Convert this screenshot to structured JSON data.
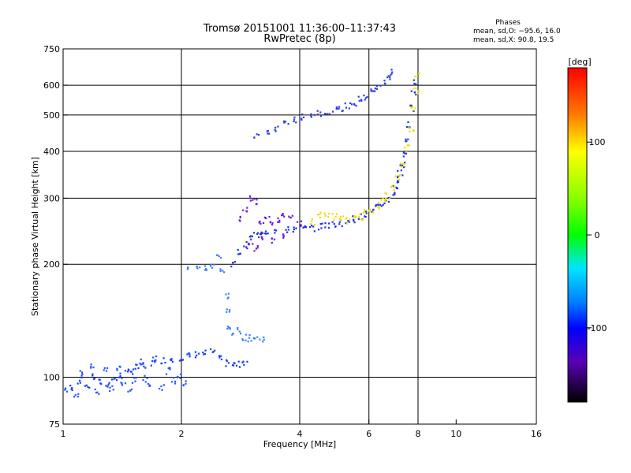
{
  "header": {
    "title": "Tromsø 20151001 11:36:00–11:37:43",
    "subtitle": "RwPretec (8p)"
  },
  "phases_box": {
    "title": "Phases",
    "line1": "mean, sd,O: −95.6, 16.0",
    "line2": "mean, sd,X:  90.8, 19.5"
  },
  "chart_data": {
    "type": "scatter",
    "xlabel": "Frequency [MHz]",
    "ylabel": "Stationary phase Virtual Height [km]",
    "xscale": "log",
    "yscale": "log",
    "xlim": [
      1,
      16
    ],
    "ylim": [
      75,
      750
    ],
    "x_ticks": [
      1,
      2,
      4,
      6,
      8,
      10,
      16
    ],
    "y_ticks": [
      75,
      100,
      200,
      300,
      400,
      500,
      600,
      750
    ],
    "x_gridlines": [
      2,
      4,
      6,
      8
    ],
    "y_gridlines": [
      100,
      200,
      300,
      400,
      500,
      600
    ],
    "grid": true,
    "colorbar": {
      "label": "[deg]",
      "range": [
        -180,
        180
      ],
      "ticks": [
        100,
        0,
        -100
      ]
    },
    "traces": [
      {
        "name_hint": "low-E",
        "color": "#1a3cff",
        "points": [
          [
            1.0,
            96
          ],
          [
            1.05,
            94
          ],
          [
            1.1,
            98
          ],
          [
            1.15,
            95
          ],
          [
            1.2,
            100
          ],
          [
            1.25,
            97
          ],
          [
            1.3,
            96
          ],
          [
            1.35,
            99
          ],
          [
            1.4,
            101
          ],
          [
            1.45,
            103
          ],
          [
            1.5,
            104
          ],
          [
            1.55,
            106
          ],
          [
            1.6,
            107
          ],
          [
            1.7,
            109
          ],
          [
            1.8,
            111
          ],
          [
            1.9,
            112
          ],
          [
            2.0,
            113
          ],
          [
            2.1,
            114
          ],
          [
            2.2,
            115
          ],
          [
            2.3,
            116
          ],
          [
            2.4,
            117
          ],
          [
            2.5,
            112
          ],
          [
            2.6,
            109
          ],
          [
            2.7,
            108
          ],
          [
            2.8,
            108
          ],
          [
            2.9,
            110
          ]
        ]
      },
      {
        "name_hint": "spread-low",
        "color": "#2a55ff",
        "points": [
          [
            1.02,
            92
          ],
          [
            1.08,
            90
          ],
          [
            1.12,
            103
          ],
          [
            1.18,
            108
          ],
          [
            1.22,
            92
          ],
          [
            1.28,
            104
          ],
          [
            1.33,
            93
          ],
          [
            1.38,
            106
          ],
          [
            1.42,
            96
          ],
          [
            1.48,
            92
          ],
          [
            1.52,
            98
          ],
          [
            1.58,
            110
          ],
          [
            1.62,
            99
          ],
          [
            1.66,
            96
          ],
          [
            1.72,
            113
          ],
          [
            1.78,
            94
          ],
          [
            1.85,
            104
          ],
          [
            1.92,
            98
          ],
          [
            1.98,
            101
          ],
          [
            2.05,
            96
          ]
        ]
      },
      {
        "name_hint": "E-F1",
        "color": "#3a80ff",
        "points": [
          [
            2.1,
            197
          ],
          [
            2.2,
            195
          ],
          [
            2.3,
            195
          ],
          [
            2.4,
            198
          ],
          [
            2.5,
            212
          ],
          [
            2.55,
            192
          ],
          [
            2.6,
            165
          ],
          [
            2.62,
            150
          ],
          [
            2.65,
            135
          ],
          [
            2.7,
            132
          ],
          [
            2.8,
            133
          ],
          [
            2.9,
            128
          ],
          [
            3.0,
            127
          ],
          [
            3.1,
            127
          ],
          [
            3.2,
            127
          ]
        ]
      },
      {
        "name_hint": "F1",
        "color": "#2233e6",
        "points": [
          [
            2.7,
            200
          ],
          [
            2.8,
            215
          ],
          [
            2.9,
            225
          ],
          [
            3.0,
            235
          ],
          [
            3.1,
            240
          ],
          [
            3.2,
            244
          ],
          [
            3.3,
            245
          ],
          [
            3.5,
            246
          ],
          [
            3.7,
            247
          ],
          [
            3.9,
            248
          ],
          [
            4.1,
            249
          ],
          [
            4.3,
            250
          ],
          [
            4.5,
            252
          ],
          [
            4.7,
            254
          ],
          [
            4.9,
            256
          ],
          [
            5.1,
            258
          ],
          [
            5.3,
            261
          ],
          [
            5.5,
            264
          ],
          [
            5.7,
            268
          ],
          [
            5.9,
            272
          ],
          [
            6.1,
            277
          ],
          [
            6.3,
            283
          ],
          [
            6.5,
            290
          ],
          [
            6.7,
            298
          ],
          [
            6.9,
            310
          ],
          [
            7.0,
            320
          ],
          [
            7.1,
            335
          ],
          [
            7.2,
            350
          ],
          [
            7.3,
            370
          ],
          [
            7.4,
            395
          ],
          [
            7.5,
            430
          ],
          [
            7.6,
            470
          ],
          [
            7.7,
            520
          ],
          [
            7.8,
            570
          ],
          [
            7.9,
            610
          ]
        ]
      },
      {
        "name_hint": "F2",
        "color": "#e8e000",
        "points": [
          [
            4.3,
            260
          ],
          [
            4.5,
            270
          ],
          [
            4.7,
            272
          ],
          [
            4.9,
            268
          ],
          [
            5.1,
            265
          ],
          [
            5.3,
            262
          ],
          [
            5.5,
            264
          ],
          [
            5.7,
            268
          ],
          [
            5.9,
            274
          ],
          [
            6.1,
            280
          ],
          [
            6.3,
            287
          ],
          [
            6.5,
            296
          ],
          [
            6.7,
            305
          ],
          [
            6.9,
            318
          ],
          [
            7.1,
            340
          ],
          [
            7.3,
            370
          ],
          [
            7.5,
            410
          ],
          [
            7.7,
            460
          ],
          [
            7.8,
            520
          ],
          [
            7.9,
            580
          ],
          [
            7.95,
            640
          ]
        ]
      },
      {
        "name_hint": "F1-spread",
        "color": "#6a1fd6",
        "points": [
          [
            2.8,
            265
          ],
          [
            2.9,
            280
          ],
          [
            3.0,
            300
          ],
          [
            3.1,
            295
          ],
          [
            3.2,
            260
          ],
          [
            3.3,
            270
          ],
          [
            3.4,
            255
          ],
          [
            3.5,
            262
          ],
          [
            3.6,
            270
          ],
          [
            3.0,
            230
          ],
          [
            3.1,
            220
          ],
          [
            3.2,
            238
          ],
          [
            3.4,
            232
          ],
          [
            3.6,
            240
          ],
          [
            3.8,
            265
          ],
          [
            4.0,
            258
          ]
        ]
      },
      {
        "name_hint": "upper",
        "color": "#2a3fe8",
        "points": [
          [
            3.1,
            440
          ],
          [
            3.3,
            445
          ],
          [
            3.5,
            460
          ],
          [
            3.7,
            475
          ],
          [
            3.9,
            485
          ],
          [
            4.1,
            495
          ],
          [
            4.3,
            500
          ],
          [
            4.5,
            505
          ],
          [
            4.7,
            510
          ],
          [
            4.9,
            515
          ],
          [
            5.1,
            520
          ],
          [
            5.3,
            530
          ],
          [
            5.5,
            540
          ],
          [
            5.7,
            550
          ],
          [
            5.9,
            560
          ],
          [
            6.1,
            575
          ],
          [
            6.3,
            590
          ],
          [
            6.5,
            610
          ],
          [
            6.7,
            635
          ],
          [
            6.9,
            650
          ]
        ]
      }
    ]
  }
}
